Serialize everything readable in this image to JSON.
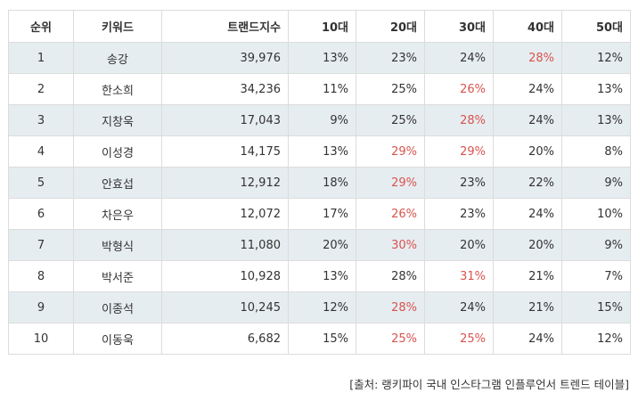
{
  "columns": [
    "순위",
    "키워드",
    "트랜드지수",
    "10대",
    "20대",
    "30대",
    "40대",
    "50대"
  ],
  "highlight_color": "#d9534f",
  "rows": [
    {
      "rank": "1",
      "keyword": "송강",
      "index": "39,976",
      "ages": [
        {
          "v": "13%",
          "hi": false
        },
        {
          "v": "23%",
          "hi": false
        },
        {
          "v": "24%",
          "hi": false
        },
        {
          "v": "28%",
          "hi": true
        },
        {
          "v": "12%",
          "hi": false
        }
      ]
    },
    {
      "rank": "2",
      "keyword": "한소희",
      "index": "34,236",
      "ages": [
        {
          "v": "11%",
          "hi": false
        },
        {
          "v": "25%",
          "hi": false
        },
        {
          "v": "26%",
          "hi": true
        },
        {
          "v": "24%",
          "hi": false
        },
        {
          "v": "13%",
          "hi": false
        }
      ]
    },
    {
      "rank": "3",
      "keyword": "지창욱",
      "index": "17,043",
      "ages": [
        {
          "v": "9%",
          "hi": false
        },
        {
          "v": "25%",
          "hi": false
        },
        {
          "v": "28%",
          "hi": true
        },
        {
          "v": "24%",
          "hi": false
        },
        {
          "v": "13%",
          "hi": false
        }
      ]
    },
    {
      "rank": "4",
      "keyword": "이성경",
      "index": "14,175",
      "ages": [
        {
          "v": "13%",
          "hi": false
        },
        {
          "v": "29%",
          "hi": true
        },
        {
          "v": "29%",
          "hi": true
        },
        {
          "v": "20%",
          "hi": false
        },
        {
          "v": "8%",
          "hi": false
        }
      ]
    },
    {
      "rank": "5",
      "keyword": "안효섭",
      "index": "12,912",
      "ages": [
        {
          "v": "18%",
          "hi": false
        },
        {
          "v": "29%",
          "hi": true
        },
        {
          "v": "23%",
          "hi": false
        },
        {
          "v": "22%",
          "hi": false
        },
        {
          "v": "9%",
          "hi": false
        }
      ]
    },
    {
      "rank": "6",
      "keyword": "차은우",
      "index": "12,072",
      "ages": [
        {
          "v": "17%",
          "hi": false
        },
        {
          "v": "26%",
          "hi": true
        },
        {
          "v": "23%",
          "hi": false
        },
        {
          "v": "24%",
          "hi": false
        },
        {
          "v": "10%",
          "hi": false
        }
      ]
    },
    {
      "rank": "7",
      "keyword": "박형식",
      "index": "11,080",
      "ages": [
        {
          "v": "20%",
          "hi": false
        },
        {
          "v": "30%",
          "hi": true
        },
        {
          "v": "20%",
          "hi": false
        },
        {
          "v": "20%",
          "hi": false
        },
        {
          "v": "9%",
          "hi": false
        }
      ]
    },
    {
      "rank": "8",
      "keyword": "박서준",
      "index": "10,928",
      "ages": [
        {
          "v": "13%",
          "hi": false
        },
        {
          "v": "28%",
          "hi": false
        },
        {
          "v": "31%",
          "hi": true
        },
        {
          "v": "21%",
          "hi": false
        },
        {
          "v": "7%",
          "hi": false
        }
      ]
    },
    {
      "rank": "9",
      "keyword": "이종석",
      "index": "10,245",
      "ages": [
        {
          "v": "12%",
          "hi": false
        },
        {
          "v": "28%",
          "hi": true
        },
        {
          "v": "24%",
          "hi": false
        },
        {
          "v": "21%",
          "hi": false
        },
        {
          "v": "15%",
          "hi": false
        }
      ]
    },
    {
      "rank": "10",
      "keyword": "이동욱",
      "index": "6,682",
      "ages": [
        {
          "v": "15%",
          "hi": false
        },
        {
          "v": "25%",
          "hi": true
        },
        {
          "v": "25%",
          "hi": true
        },
        {
          "v": "24%",
          "hi": false
        },
        {
          "v": "12%",
          "hi": false
        }
      ]
    }
  ],
  "source": "[출처: 랭키파이 국내 인스타그램 인플루언서 트렌드 테이블]"
}
